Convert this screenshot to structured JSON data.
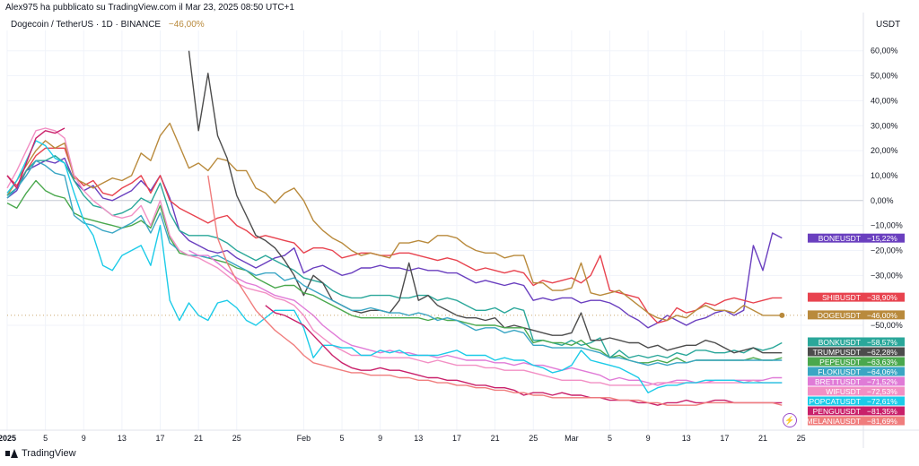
{
  "header": {
    "published": "Alex975 ha pubblicato su TradingView.com il Mar 23, 2025 08:50 UTC+1",
    "symbol": "Dogecoin / TetherUS · 1D · BINANCE",
    "change": "−46,00%",
    "currency": "USDT"
  },
  "footer": {
    "brand": "TradingView"
  },
  "icons": {
    "lightning": "lightning-icon",
    "logo": "tradingview-logo-icon"
  },
  "chart_data": {
    "type": "line",
    "ylabel": "USDT",
    "y_unit": "%",
    "ylim": [
      -92,
      66
    ],
    "xlim": [
      0,
      82
    ],
    "y_ticks": [
      "60,00%",
      "50,00%",
      "40,00%",
      "30,00%",
      "20,00%",
      "10,00%",
      "0,00%",
      "−10,00%",
      "−20,00%",
      "−30,00%",
      "−50,00%"
    ],
    "y_tick_values": [
      60,
      50,
      40,
      30,
      20,
      10,
      0,
      -10,
      -20,
      -30,
      -50
    ],
    "x_ticks": [
      "2025",
      "5",
      "9",
      "13",
      "17",
      "21",
      "25",
      "Feb",
      "5",
      "9",
      "13",
      "17",
      "21",
      "25",
      "Mar",
      "5",
      "9",
      "13",
      "17",
      "21",
      "25"
    ],
    "x_tick_days": [
      0,
      4,
      8,
      12,
      16,
      20,
      24,
      31,
      35,
      39,
      43,
      47,
      51,
      55,
      59,
      63,
      67,
      71,
      75,
      79,
      83
    ],
    "grid": true,
    "series": [
      {
        "name": "BONEUSDT",
        "label": "−15,22%",
        "color": "#6a3fbf",
        "last": -15.22,
        "values": [
          1,
          4,
          12,
          14,
          16,
          15,
          17,
          8,
          4,
          6,
          1,
          0,
          2,
          4,
          8,
          4,
          10,
          1,
          -12,
          -16,
          -18,
          -20,
          -21,
          -20,
          -23,
          -25,
          -27,
          -25,
          -23,
          -22,
          -19,
          -29,
          -27,
          -26,
          -28,
          -30,
          -29,
          -27,
          -27,
          -26,
          -27,
          -27,
          -28,
          -27,
          -28,
          -28,
          -29,
          -29,
          -31,
          -33,
          -32,
          -33,
          -34,
          -33,
          -34,
          -40,
          -39,
          -40,
          -39,
          -39,
          -41,
          -40,
          -40,
          -41,
          -43,
          -46,
          -48,
          -51,
          -49,
          -46,
          -48,
          -50,
          -48,
          -47,
          -45,
          -44,
          -46,
          -44,
          -18,
          -28,
          -13,
          -15
        ]
      },
      {
        "name": "SHIBUSDT",
        "label": "−38,90%",
        "color": "#e8434f",
        "last": -38.9,
        "values": [
          10,
          6,
          12,
          18,
          21,
          21,
          21,
          10,
          6,
          8,
          3,
          2,
          5,
          7,
          10,
          3,
          10,
          0,
          -3,
          -5,
          -7,
          -9,
          -7,
          -6,
          -10,
          -12,
          -15,
          -14,
          -15,
          -16,
          -17,
          -21,
          -19,
          -19,
          -20,
          -23,
          -22,
          -21,
          -21,
          -22,
          -22,
          -21,
          -21,
          -22,
          -23,
          -24,
          -23,
          -24,
          -26,
          -28,
          -27,
          -28,
          -29,
          -28,
          -29,
          -34,
          -32,
          -33,
          -32,
          -31,
          -33,
          -30,
          -22,
          -36,
          -37,
          -38,
          -39,
          -45,
          -49,
          -48,
          -43,
          -45,
          -44,
          -41,
          -42,
          -40,
          -39,
          -40,
          -41,
          -40,
          -39,
          -39
        ]
      },
      {
        "name": "DOGEUSDT",
        "label": "−46,00%",
        "color": "#b98a3c",
        "last": -46.0,
        "values": [
          2,
          8,
          14,
          20,
          24,
          21,
          23,
          9,
          7,
          5,
          7,
          9,
          8,
          10,
          19,
          16,
          26,
          31,
          22,
          13,
          15,
          12,
          17,
          16,
          12,
          12,
          5,
          3,
          -1,
          3,
          5,
          0,
          -8,
          -12,
          -15,
          -17,
          -20,
          -22,
          -21,
          -22,
          -23,
          -17,
          -17,
          -16,
          -17,
          -14,
          -14,
          -15,
          -18,
          -20,
          -21,
          -21,
          -23,
          -22,
          -22,
          -33,
          -33,
          -36,
          -36,
          -35,
          -25,
          -37,
          -38,
          -37,
          -36,
          -39,
          -42,
          -45,
          -47,
          -48,
          -46,
          -47,
          -44,
          -42,
          -44,
          -44,
          -45,
          -42,
          -44,
          -46,
          -46,
          -46
        ]
      },
      {
        "name": "BONKUSDT",
        "label": "−58,57%",
        "color": "#2aa79a",
        "last": -58.57,
        "values": [
          2,
          5,
          12,
          16,
          16,
          18,
          15,
          8,
          2,
          -2,
          -3,
          -6,
          -5,
          -3,
          1,
          -1,
          7,
          -5,
          -12,
          -14,
          -14,
          -14,
          -15,
          -17,
          -20,
          -22,
          -24,
          -22,
          -24,
          -26,
          -28,
          -31,
          -32,
          -33,
          -36,
          -38,
          -39,
          -39,
          -38,
          -38,
          -38,
          -39,
          -39,
          -38,
          -38,
          -40,
          -39,
          -40,
          -42,
          -44,
          -44,
          -43,
          -45,
          -43,
          -44,
          -56,
          -56,
          -57,
          -58,
          -56,
          -58,
          -57,
          -55,
          -63,
          -60,
          -63,
          -62,
          -63,
          -62,
          -63,
          -61,
          -62,
          -60,
          -60,
          -61,
          -61,
          -60,
          -61,
          -59,
          -60,
          -59,
          -57
        ]
      },
      {
        "name": "TRUMPUSDT",
        "label": "−62,28%",
        "color": "#4c4c4c",
        "last": -62.28,
        "values": [
          null,
          null,
          null,
          null,
          null,
          null,
          null,
          null,
          null,
          null,
          null,
          null,
          null,
          null,
          null,
          null,
          null,
          null,
          null,
          60,
          28,
          51,
          26,
          17,
          2,
          -6,
          -14,
          -16,
          -19,
          -24,
          -30,
          -38,
          -30,
          -33,
          -40,
          -42,
          -44,
          -45,
          -44,
          -44,
          -45,
          -40,
          -25,
          -40,
          -38,
          -42,
          -44,
          -46,
          -47,
          -47,
          -48,
          -47,
          -51,
          -50,
          -51,
          -52,
          -53,
          -54,
          -54,
          -53,
          -45,
          -56,
          -56,
          -55,
          -56,
          -57,
          -57,
          -59,
          -58,
          -60,
          -59,
          -58,
          -58,
          -56,
          -57,
          -59,
          -61,
          -60,
          -59,
          -61,
          -61,
          -61
        ]
      },
      {
        "name": "PEPEUSDT",
        "label": "−63,63%",
        "color": "#4aa84d",
        "last": -63.63,
        "values": [
          -1,
          -3,
          3,
          8,
          4,
          2,
          1,
          -5,
          -7,
          -8,
          -9,
          -10,
          -11,
          -10,
          -8,
          -11,
          -2,
          -15,
          -21,
          -22,
          -22,
          -23,
          -24,
          -25,
          -27,
          -28,
          -31,
          -33,
          -35,
          -34,
          -34,
          -37,
          -38,
          -40,
          -42,
          -44,
          -46,
          -47,
          -47,
          -47,
          -47,
          -47,
          -47,
          -47,
          -48,
          -47,
          -48,
          -48,
          -49,
          -50,
          -50,
          -50,
          -51,
          -51,
          -51,
          -57,
          -56,
          -57,
          -57,
          -58,
          -56,
          -59,
          -60,
          -63,
          -62,
          -64,
          -65,
          -65,
          -64,
          -65,
          -63,
          -65,
          -64,
          -64,
          -64,
          -64,
          -64,
          -64,
          -63,
          -64,
          -64,
          -63
        ]
      },
      {
        "name": "FLOKIUSDT",
        "label": "−64,06%",
        "color": "#3aa6c4",
        "last": -64.06,
        "values": [
          1,
          5,
          10,
          16,
          14,
          11,
          10,
          -6,
          -9,
          -10,
          -12,
          -13,
          -11,
          -9,
          -6,
          -13,
          -5,
          -17,
          -20,
          -22,
          -22,
          -23,
          -22,
          -24,
          -26,
          -28,
          -30,
          -29,
          -29,
          -32,
          -31,
          -34,
          -36,
          -38,
          -40,
          -42,
          -44,
          -44,
          -43,
          -44,
          -45,
          -45,
          -46,
          -45,
          -46,
          -48,
          -47,
          -48,
          -50,
          -52,
          -51,
          -51,
          -53,
          -52,
          -53,
          -58,
          -58,
          -59,
          -59,
          -59,
          -59,
          -60,
          -61,
          -63,
          -63,
          -64,
          -65,
          -66,
          -65,
          -66,
          -65,
          -65,
          -64,
          -64,
          -64,
          -64,
          -64,
          -64,
          -64,
          -64,
          -64,
          -64
        ]
      },
      {
        "name": "BRETTUSDT",
        "label": "−71,52%",
        "color": "#e07bd7",
        "last": -71.52,
        "values": [
          null,
          null,
          null,
          null,
          null,
          null,
          null,
          null,
          null,
          null,
          null,
          null,
          null,
          null,
          null,
          null,
          null,
          null,
          null,
          -20,
          -22,
          -22,
          -25,
          -28,
          -31,
          -33,
          -34,
          -36,
          -38,
          -39,
          -40,
          -43,
          -46,
          -50,
          -53,
          -56,
          -58,
          -59,
          -60,
          -61,
          -60,
          -61,
          -61,
          -62,
          -62,
          -63,
          -62,
          -63,
          -64,
          -64,
          -64,
          -65,
          -65,
          -66,
          -65,
          -66,
          -66,
          -67,
          -68,
          -67,
          -68,
          -69,
          -70,
          -72,
          -71,
          -72,
          -72,
          -73,
          -74,
          -73,
          -72,
          -72,
          -73,
          -73,
          -72,
          -72,
          -72,
          -72,
          -72,
          -72,
          -71,
          -71
        ]
      },
      {
        "name": "WIFUSDT",
        "label": "−72,53%",
        "color": "#f28fc4",
        "last": -72.53,
        "values": [
          5,
          12,
          20,
          28,
          29,
          28,
          25,
          10,
          4,
          0,
          -3,
          -6,
          -7,
          -6,
          -2,
          -10,
          0,
          -14,
          -20,
          -22,
          -23,
          -25,
          -27,
          -30,
          -33,
          -35,
          -36,
          -37,
          -39,
          -40,
          -42,
          -46,
          -52,
          -55,
          -58,
          -60,
          -62,
          -62,
          -62,
          -63,
          -63,
          -63,
          -63,
          -64,
          -65,
          -64,
          -65,
          -66,
          -66,
          -66,
          -67,
          -67,
          -68,
          -68,
          -68,
          -69,
          -70,
          -71,
          -72,
          -72,
          -72,
          -73,
          -73,
          -74,
          -74,
          -74,
          -74,
          -74,
          -73,
          -73,
          -73,
          -73,
          -73,
          -73,
          -73,
          -73,
          -73,
          -73,
          -72,
          -73,
          -73,
          -73
        ]
      },
      {
        "name": "POPCATUSDT",
        "label": "−72,61%",
        "color": "#1ccbe8",
        "last": -72.61,
        "values": [
          3,
          8,
          16,
          24,
          22,
          17,
          15,
          3,
          -8,
          -14,
          -26,
          -28,
          -22,
          -20,
          -18,
          -26,
          -10,
          -40,
          -48,
          -41,
          -46,
          -48,
          -41,
          -40,
          -43,
          -48,
          -50,
          -47,
          -44,
          -44,
          -44,
          -51,
          -63,
          -58,
          -58,
          -59,
          -59,
          -62,
          -62,
          -60,
          -61,
          -60,
          -62,
          -62,
          -62,
          -62,
          -61,
          -60,
          -62,
          -62,
          -62,
          -64,
          -63,
          -64,
          -64,
          -66,
          -67,
          -69,
          -68,
          -66,
          -60,
          -64,
          -65,
          -66,
          -67,
          -69,
          -71,
          -77,
          -75,
          -74,
          -74,
          -73,
          -73,
          -72,
          -72,
          -72,
          -72,
          -73,
          -73,
          -73,
          -73,
          -73
        ]
      },
      {
        "name": "PENGUUSDT",
        "label": "−81,35%",
        "color": "#c9206a",
        "last": -81.35,
        "values": [
          10,
          5,
          15,
          25,
          28,
          27,
          29,
          null,
          null,
          null,
          null,
          null,
          null,
          null,
          null,
          null,
          null,
          null,
          null,
          null,
          null,
          null,
          null,
          null,
          null,
          null,
          null,
          -42,
          -45,
          -46,
          -48,
          -50,
          -54,
          -58,
          -62,
          -65,
          -67,
          -68,
          -68,
          -67,
          -68,
          -68,
          -69,
          -70,
          -71,
          -71,
          -72,
          -72,
          -73,
          -74,
          -74,
          -75,
          -75,
          -76,
          -78,
          -77,
          -77,
          -78,
          -77,
          -78,
          -78,
          -79,
          -79,
          -80,
          -80,
          -80,
          -81,
          -81,
          -82,
          -81,
          -81,
          -80,
          -81,
          -81,
          -80,
          -80,
          -81,
          -81,
          -81,
          -81,
          -81,
          -81
        ]
      },
      {
        "name": "MELANIAUSDT",
        "label": "−81,69%",
        "color": "#f07d7d",
        "last": -81.69,
        "values": [
          null,
          null,
          null,
          null,
          null,
          null,
          null,
          null,
          null,
          null,
          null,
          null,
          null,
          null,
          null,
          null,
          null,
          null,
          null,
          null,
          null,
          10,
          -15,
          -25,
          -32,
          -38,
          -44,
          -48,
          -52,
          -55,
          -58,
          -62,
          -65,
          -66,
          -67,
          -68,
          -69,
          -69,
          -70,
          -70,
          -70,
          -71,
          -71,
          -72,
          -72,
          -73,
          -73,
          -74,
          -74,
          -75,
          -75,
          -76,
          -76,
          -77,
          -77,
          -78,
          -78,
          -79,
          -79,
          -79,
          -79,
          -79,
          -79,
          -79,
          -80,
          -80,
          -80,
          -81,
          -81,
          -82,
          -82,
          -82,
          -82,
          -81,
          -81,
          -81,
          -81,
          -81,
          -81,
          -81,
          -81,
          -82
        ]
      }
    ]
  }
}
